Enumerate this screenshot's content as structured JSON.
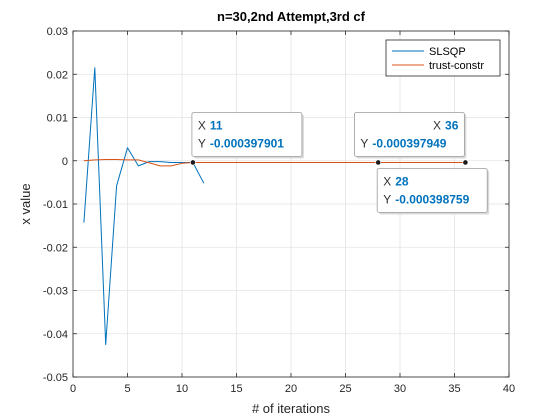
{
  "chart_data": {
    "type": "line",
    "title": "n=30,2nd Attempt,3rd cf",
    "xlabel": "# of iterations",
    "ylabel": "x value",
    "xlim": [
      0,
      40
    ],
    "ylim": [
      -0.05,
      0.03
    ],
    "xticks": [
      0,
      5,
      10,
      15,
      20,
      25,
      30,
      35,
      40
    ],
    "yticks": [
      -0.05,
      -0.04,
      -0.03,
      -0.02,
      -0.01,
      0,
      0.01,
      0.02,
      0.03
    ],
    "xtick_labels": [
      "0",
      "5",
      "10",
      "15",
      "20",
      "25",
      "30",
      "35",
      "40"
    ],
    "ytick_labels": [
      "-0.05",
      "-0.04",
      "-0.03",
      "-0.02",
      "-0.01",
      "0",
      "0.01",
      "0.02",
      "0.03"
    ],
    "grid": true,
    "legend_position": "top-right",
    "series": [
      {
        "name": "SLSQP",
        "color": "#0072BD",
        "x": [
          1,
          2,
          3,
          4,
          5,
          6,
          7,
          8,
          9,
          10,
          11,
          12
        ],
        "y": [
          -0.0143,
          0.0215,
          -0.0425,
          -0.0058,
          0.003,
          -0.0012,
          -0.0002,
          -0.0002,
          -0.0004,
          -0.0004,
          -0.0004,
          -0.0052
        ]
      },
      {
        "name": "trust-constr",
        "color": "#D95319",
        "x": [
          1,
          2,
          3,
          4,
          5,
          6,
          7,
          8,
          9,
          10,
          11,
          12,
          13,
          14,
          15,
          16,
          17,
          18,
          19,
          20,
          21,
          22,
          23,
          24,
          25,
          26,
          27,
          28,
          29,
          30,
          31,
          32,
          33,
          34,
          35,
          36
        ],
        "y": [
          0,
          0.0002,
          0.0003,
          0.0003,
          0.0002,
          0.0002,
          -0.0005,
          -0.0012,
          -0.0012,
          -0.0006,
          -0.0004,
          -0.0004,
          -0.0004,
          -0.0004,
          -0.0004,
          -0.0004,
          -0.0004,
          -0.0004,
          -0.0004,
          -0.0004,
          -0.0004,
          -0.0004,
          -0.0004,
          -0.0004,
          -0.0004,
          -0.0004,
          -0.0004,
          -0.0004,
          -0.0004,
          -0.0004,
          -0.0004,
          -0.0004,
          -0.0004,
          -0.0004,
          -0.0004,
          -0.0004
        ]
      }
    ],
    "datatips": [
      {
        "x_label": "X",
        "x_value": "11",
        "y_label": "Y",
        "y_value": "-0.000397901",
        "x": 11,
        "y": -0.000397901,
        "box_side": "above-right",
        "x_align": "left"
      },
      {
        "x_label": "X",
        "x_value": "36",
        "y_label": "Y",
        "y_value": "-0.000397949",
        "x": 36,
        "y": -0.000397949,
        "box_side": "above-left",
        "x_align": "right"
      },
      {
        "x_label": "X",
        "x_value": "28",
        "y_label": "Y",
        "y_value": "-0.000398759",
        "x": 28,
        "y": -0.000398759,
        "box_side": "below-right",
        "x_align": "left"
      }
    ]
  }
}
